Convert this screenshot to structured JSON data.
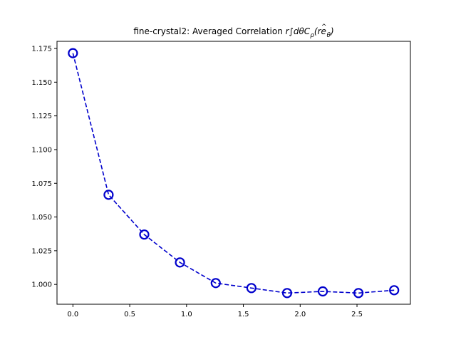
{
  "chart_data": {
    "type": "line",
    "title_prefix": "fine-crystal2: Averaged Correlation ",
    "title_math": "r∫dθC",
    "title_math_sub": "ρ",
    "title_math_arg_open": "(r",
    "title_math_vec": "e",
    "title_math_vec_hat": "^",
    "title_math_vec_sub": "θ",
    "title_math_arg_close": ")",
    "xlabel": "",
    "ylabel": "",
    "xlim": [
      -0.14,
      2.97
    ],
    "ylim": [
      0.9853,
      1.1803
    ],
    "x_ticks": [
      0.0,
      0.5,
      1.0,
      1.5,
      2.0,
      2.5
    ],
    "x_tick_labels": [
      "0.0",
      "0.5",
      "1.0",
      "1.5",
      "2.0",
      "2.5"
    ],
    "y_ticks": [
      1.0,
      1.025,
      1.05,
      1.075,
      1.1,
      1.125,
      1.15,
      1.175
    ],
    "y_tick_labels": [
      "1.000",
      "1.025",
      "1.050",
      "1.075",
      "1.100",
      "1.125",
      "1.150",
      "1.175"
    ],
    "grid": false,
    "series": [
      {
        "color": "#0000cc",
        "line_style": "dashed",
        "marker": "open-circle",
        "x": [
          0.0,
          0.314,
          0.628,
          0.942,
          1.257,
          1.571,
          1.885,
          2.199,
          2.513,
          2.827
        ],
        "y": [
          1.1715,
          1.0665,
          1.037,
          1.0163,
          1.001,
          0.9973,
          0.9936,
          0.9948,
          0.9936,
          0.9957
        ]
      }
    ]
  }
}
